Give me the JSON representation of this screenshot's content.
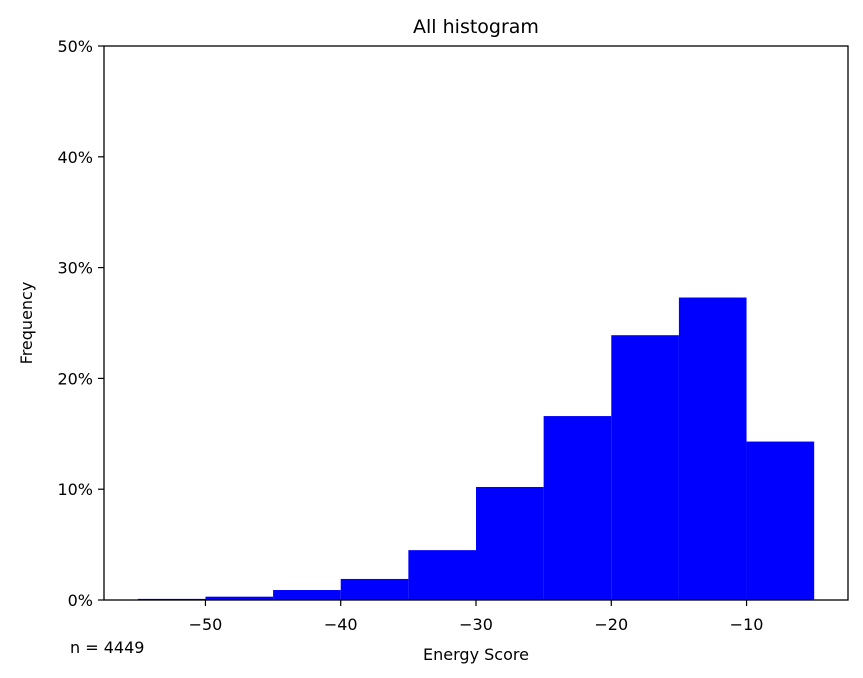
{
  "chart_data": {
    "type": "bar",
    "title": "All histogram",
    "xlabel": "Energy Score",
    "ylabel": "Frequency",
    "xlim": [
      -57.5,
      -2.5
    ],
    "ylim": [
      0,
      50
    ],
    "xticks": [
      -50,
      -40,
      -30,
      -20,
      -10
    ],
    "xtick_labels": [
      "−50",
      "−40",
      "−30",
      "−20",
      "−10"
    ],
    "yticks": [
      0,
      10,
      20,
      30,
      40,
      50
    ],
    "ytick_labels": [
      "0%",
      "10%",
      "20%",
      "30%",
      "40%",
      "50%"
    ],
    "bar_color": "#0000ff",
    "bins": [
      {
        "x0": -55,
        "x1": -50,
        "value": 0.1
      },
      {
        "x0": -50,
        "x1": -45,
        "value": 0.3
      },
      {
        "x0": -45,
        "x1": -40,
        "value": 0.9
      },
      {
        "x0": -40,
        "x1": -35,
        "value": 1.9
      },
      {
        "x0": -35,
        "x1": -30,
        "value": 4.5
      },
      {
        "x0": -30,
        "x1": -25,
        "value": 10.2
      },
      {
        "x0": -25,
        "x1": -20,
        "value": 16.6
      },
      {
        "x0": -20,
        "x1": -15,
        "value": 23.9
      },
      {
        "x0": -15,
        "x1": -10,
        "value": 27.3
      },
      {
        "x0": -10,
        "x1": -5,
        "value": 14.3
      }
    ],
    "annotation": "n = 4449",
    "grid": false
  }
}
